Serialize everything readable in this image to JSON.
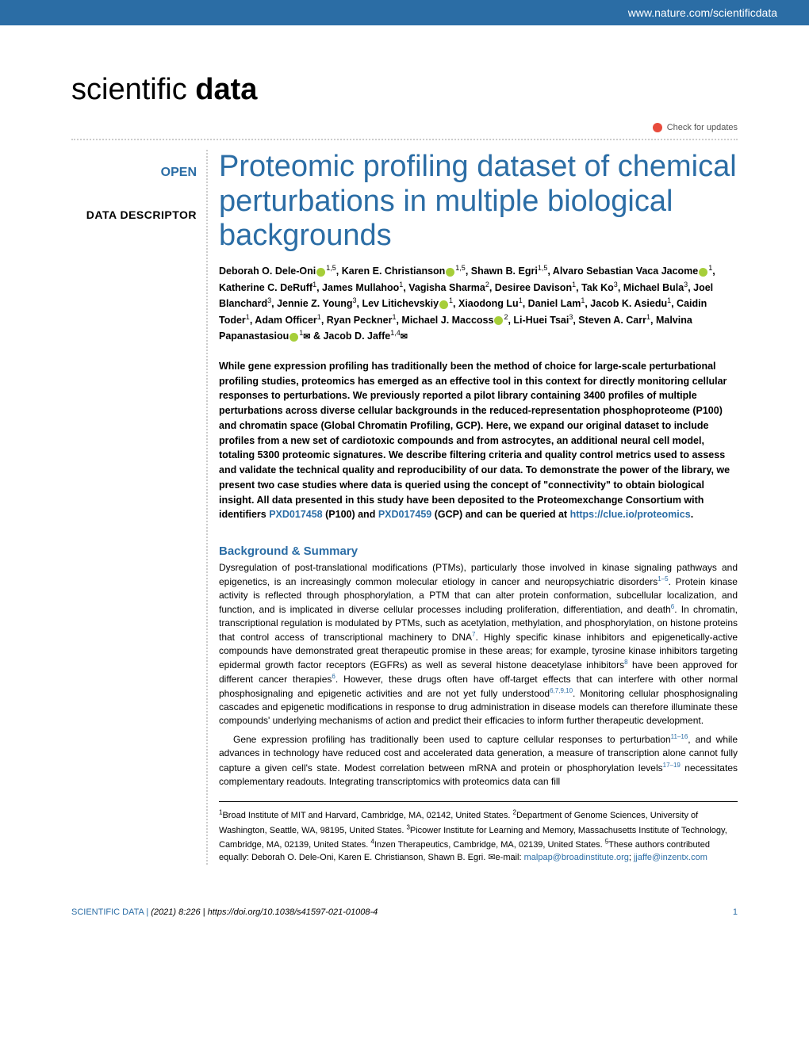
{
  "header": {
    "url": "www.nature.com/scientificdata"
  },
  "journal": {
    "name_light": "scientific ",
    "name_bold": "data"
  },
  "check_updates": "Check for updates",
  "badges": {
    "open": "OPEN",
    "descriptor": "DATA DESCRIPTOR"
  },
  "title": "Proteomic profiling dataset of chemical perturbations in multiple biological backgrounds",
  "authors_html": "Deborah O. Dele-Oni|1,5|o, Karen E. Christianson|1,5|o, Shawn B. Egri|1,5|, Alvaro Sebastian Vaca Jacome|1|o, Katherine C. DeRuff|1|, James Mullahoo|1|, Vagisha Sharma|2|, Desiree Davison|1|, Tak Ko|3|, Michael Bula|3|, Joel Blanchard|3|, Jennie Z. Young|3|, Lev Litichevskiy|1|o, Xiaodong Lu|1|, Daniel Lam|1|, Jacob K. Asiedu|1|, Caidin Toder|1|, Adam Officer|1|, Ryan Peckner|1|, Michael J. Maccoss|2|o, Li-Huei Tsai|3|, Steven A. Carr|1|, Malvina Papanastasiou|1|oe & Jacob D. Jaffe|1,4|e",
  "abstract": {
    "text": "While gene expression profiling has traditionally been the method of choice for large-scale perturbational profiling studies, proteomics has emerged as an effective tool in this context for directly monitoring cellular responses to perturbations. We previously reported a pilot library containing 3400 profiles of multiple perturbations across diverse cellular backgrounds in the reduced-representation phosphoproteome (P100) and chromatin space (Global Chromatin Profiling, GCP). Here, we expand our original dataset to include profiles from a new set of cardiotoxic compounds and from astrocytes, an additional neural cell model, totaling 5300 proteomic signatures. We describe filtering criteria and quality control metrics used to assess and validate the technical quality and reproducibility of our data. To demonstrate the power of the library, we present two case studies where data is queried using the concept of \"connectivity\" to obtain biological insight. All data presented in this study have been deposited to the Proteomexchange Consortium with identifiers ",
    "link1": "PXD017458",
    "mid": " (P100) and ",
    "link2": "PXD017459",
    "tail": " (GCP) and can be queried at ",
    "link3": "https://clue.io/proteomics",
    "end": "."
  },
  "section_heading": "Background & Summary",
  "para1": "Dysregulation of post-translational modifications (PTMs), particularly those involved in kinase signaling pathways and epigenetics, is an increasingly common molecular etiology in cancer and neuropsychiatric disorders1–5. Protein kinase activity is reflected through phosphorylation, a PTM that can alter protein conformation, subcellular localization, and function, and is implicated in diverse cellular processes including proliferation, differentiation, and death6. In chromatin, transcriptional regulation is modulated by PTMs, such as acetylation, methylation, and phosphorylation, on histone proteins that control access of transcriptional machinery to DNA7. Highly specific kinase inhibitors and epigenetically-active compounds have demonstrated great therapeutic promise in these areas; for example, tyrosine kinase inhibitors targeting epidermal growth factor receptors (EGFRs) as well as several histone deacetylase inhibitors8 have been approved for different cancer therapies6. However, these drugs often have off-target effects that can interfere with other normal phosphosignaling and epigenetic activities and are not yet fully understood6,7,9,10. Monitoring cellular phosphosignaling cascades and epigenetic modifications in response to drug administration in disease models can therefore illuminate these compounds' underlying mechanisms of action and predict their efficacies to inform further therapeutic development.",
  "para2": "Gene expression profiling has traditionally been used to capture cellular responses to perturbation11–16, and while advances in technology have reduced cost and accelerated data generation, a measure of transcription alone cannot fully capture a given cell's state. Modest correlation between mRNA and protein or phosphorylation levels17–19 necessitates complementary readouts. Integrating transcriptomics with proteomics data can fill",
  "affiliations": {
    "text": "1Broad Institute of MIT and Harvard, Cambridge, MA, 02142, United States. 2Department of Genome Sciences, University of Washington, Seattle, WA, 98195, United States. 3Picower Institute for Learning and Memory, Massachusetts Institute of Technology, Cambridge, MA, 02139, United States. 4Inzen Therapeutics, Cambridge, MA, 02139, United States. 5These authors contributed equally: Deborah O. Dele-Oni, Karen E. Christianson, Shawn B. Egri. ✉e-mail: ",
    "email1": "malpap@broadinstitute.org",
    "sep": "; ",
    "email2": "jjaffe@inzentx.com"
  },
  "footer": {
    "journal": "SCIENTIFIC DATA",
    "sep": " |          ",
    "citation": "(2021) 8:226 | https://doi.org/10.1038/s41597-021-01008-4",
    "page": "1"
  },
  "colors": {
    "brand": "#2b6da5",
    "orcid": "#a6ce39",
    "updates_icon": "#e84b3c"
  }
}
